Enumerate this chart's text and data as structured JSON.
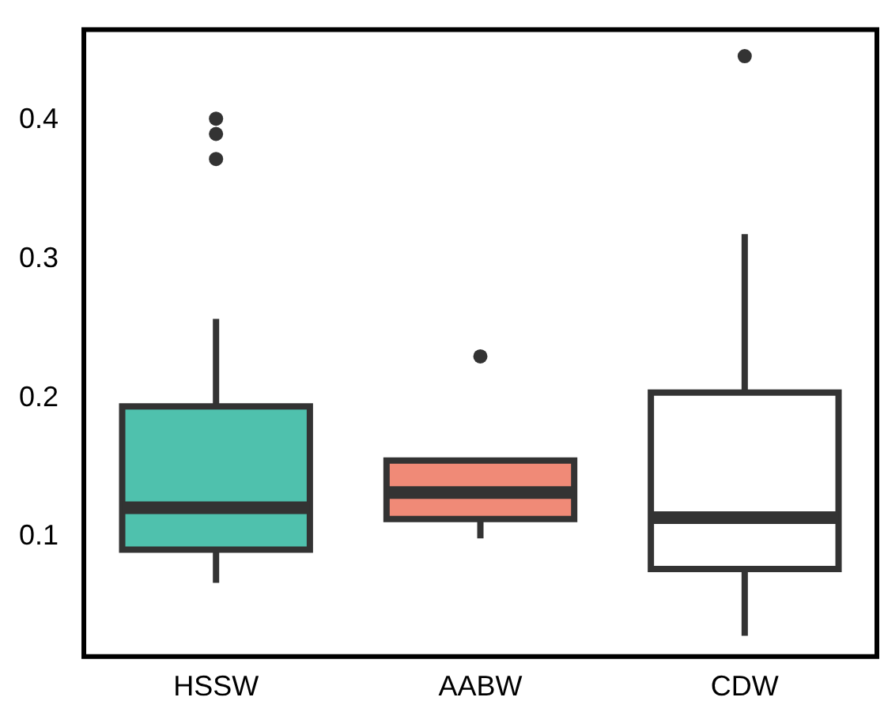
{
  "chart_data": {
    "type": "box",
    "categories": [
      "HSSW",
      "AABW",
      "CDW"
    ],
    "colors": [
      "#4fc1ad",
      "#f08a77",
      "#ffffff"
    ],
    "boxes": [
      {
        "low": 0.067,
        "q1": 0.091,
        "median": 0.121,
        "q3": 0.194,
        "high": 0.257,
        "outliers": [
          0.401,
          0.39,
          0.372
        ]
      },
      {
        "low": 0.099,
        "q1": 0.113,
        "median": 0.132,
        "q3": 0.155,
        "high": 0.156,
        "outliers": [
          0.23
        ]
      },
      {
        "low": 0.029,
        "q1": 0.077,
        "median": 0.114,
        "q3": 0.204,
        "high": 0.318,
        "outliers": [
          0.446
        ]
      }
    ],
    "ylim": [
      0.014,
      0.465
    ],
    "yticks": [
      0.1,
      0.2,
      0.3,
      0.4
    ],
    "grid": false,
    "legend": false
  }
}
